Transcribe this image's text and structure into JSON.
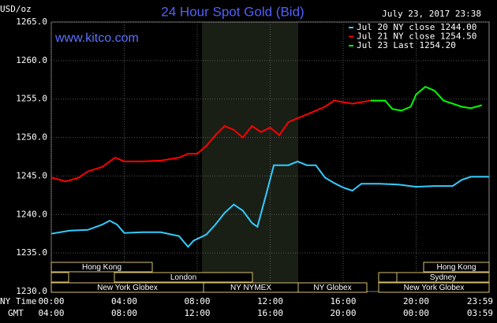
{
  "chart_data": {
    "type": "line",
    "title": "24 Hour Spot Gold (Bid)",
    "unit_label": "USD/oz",
    "timestamp": "July 23, 2017 23:38",
    "source": "www.kitco.com",
    "x_label": "NY Time",
    "x2_label": "GMT",
    "xlim": [
      0,
      24
    ],
    "xticks": [
      {
        "value": 0,
        "label": "00:00"
      },
      {
        "value": 4,
        "label": "04:00"
      },
      {
        "value": 8,
        "label": "08:00"
      },
      {
        "value": 12,
        "label": "12:00"
      },
      {
        "value": 16,
        "label": "16:00"
      },
      {
        "value": 20,
        "label": "20:00"
      },
      {
        "value": 23.98,
        "label": "23:59"
      }
    ],
    "x2ticks": [
      {
        "value": 0,
        "label": "04:00"
      },
      {
        "value": 4,
        "label": "08:00"
      },
      {
        "value": 8,
        "label": "12:00"
      },
      {
        "value": 12,
        "label": "16:00"
      },
      {
        "value": 16,
        "label": "20:00"
      },
      {
        "value": 20,
        "label": "00:00"
      },
      {
        "value": 23.98,
        "label": "03:59"
      }
    ],
    "ylim": [
      1230,
      1265
    ],
    "yticks": [
      {
        "value": 1230,
        "label": "1230.0"
      },
      {
        "value": 1235,
        "label": "1235.0"
      },
      {
        "value": 1240,
        "label": "1240.0"
      },
      {
        "value": 1245,
        "label": "1245.0"
      },
      {
        "value": 1250,
        "label": "1250.0"
      },
      {
        "value": 1255,
        "label": "1255.0"
      },
      {
        "value": 1260,
        "label": "1260.0"
      },
      {
        "value": 1265,
        "label": "1265.0"
      }
    ],
    "grid": true,
    "sessions": [
      "Hong Kong",
      "London",
      "New York Globex",
      "NY NYMEX",
      "NY Globex",
      "Hong Kong",
      "Sydney",
      "New York Globex"
    ],
    "series": [
      {
        "name": "Jul 20 NY close 1244.00",
        "color": "#33ccff",
        "x": [
          0,
          1,
          2,
          2.8,
          3.2,
          3.6,
          4,
          5,
          6,
          7,
          7.5,
          7.8,
          8.5,
          9,
          9.5,
          10,
          10.5,
          11,
          11.3,
          11.8,
          12.2,
          13,
          13.5,
          14,
          14.5,
          15,
          15.5,
          16,
          16.5,
          17,
          18,
          19,
          20,
          21,
          22,
          22.5,
          23,
          24
        ],
        "values": [
          1237.5,
          1237.9,
          1238.0,
          1238.7,
          1239.2,
          1238.7,
          1237.6,
          1237.7,
          1237.7,
          1237.2,
          1235.8,
          1236.6,
          1237.4,
          1238.7,
          1240.2,
          1241.3,
          1240.5,
          1238.9,
          1238.4,
          1242.8,
          1246.4,
          1246.4,
          1246.9,
          1246.4,
          1246.4,
          1244.8,
          1244.1,
          1243.5,
          1243.1,
          1244.0,
          1244.0,
          1243.9,
          1243.6,
          1243.7,
          1243.7,
          1244.5,
          1244.9,
          1244.9
        ]
      },
      {
        "name": "Jul 21 NY close 1254.50",
        "color": "#ff0000",
        "x": [
          0,
          0.8,
          1.5,
          2,
          2.8,
          3.5,
          4,
          5,
          6,
          7,
          7.5,
          8,
          8.5,
          9,
          9.5,
          10,
          10.5,
          11,
          11.5,
          12,
          12.5,
          13,
          13.5,
          14,
          14.5,
          15,
          15.5,
          16,
          16.5,
          17,
          17.5
        ],
        "values": [
          1244.8,
          1244.3,
          1244.8,
          1245.6,
          1246.2,
          1247.4,
          1246.9,
          1246.9,
          1247.0,
          1247.4,
          1247.9,
          1247.9,
          1248.9,
          1250.3,
          1251.5,
          1251.0,
          1250.0,
          1251.5,
          1250.7,
          1251.3,
          1250.3,
          1252.0,
          1252.5,
          1253.0,
          1253.5,
          1254.0,
          1254.8,
          1254.6,
          1254.4,
          1254.6,
          1254.8
        ]
      },
      {
        "name": "Jul 23 Last 1254.20",
        "color": "#00ff00",
        "x": [
          17.5,
          18.3,
          18.7,
          19.2,
          19.7,
          20,
          20.5,
          21,
          21.5,
          22,
          22.5,
          23,
          23.6
        ],
        "values": [
          1254.8,
          1254.8,
          1253.7,
          1253.5,
          1254.0,
          1255.6,
          1256.6,
          1256.1,
          1254.8,
          1254.4,
          1254.0,
          1253.8,
          1254.2
        ]
      }
    ]
  }
}
